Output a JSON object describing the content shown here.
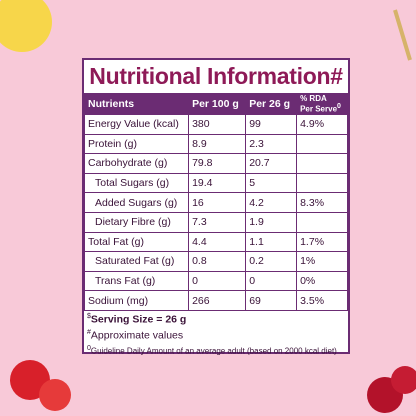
{
  "title": "Nutritional Information#",
  "table": {
    "header": [
      "Nutrients",
      "Per 100 g",
      "Per 26 g",
      {
        "line1": "% RDA",
        "line2": "Per Serve",
        "mark": "0"
      }
    ],
    "rows": [
      {
        "cells": [
          "Energy Value (kcal)",
          "380",
          "99",
          "4.9%"
        ],
        "sub": false
      },
      {
        "cells": [
          "Protein (g)",
          "8.9",
          "2.3",
          null
        ],
        "sub": false
      },
      {
        "cells": [
          "Carbohydrate (g)",
          "79.8",
          "20.7",
          null
        ],
        "sub": false
      },
      {
        "cells": [
          "Total Sugars (g)",
          "19.4",
          "5",
          null
        ],
        "sub": true
      },
      {
        "cells": [
          "Added Sugars (g)",
          "16",
          "4.2",
          "8.3%"
        ],
        "sub": true
      },
      {
        "cells": [
          "Dietary Fibre (g)",
          "7.3",
          "1.9",
          null
        ],
        "sub": true
      },
      {
        "cells": [
          "Total Fat (g)",
          "4.4",
          "1.1",
          "1.7%"
        ],
        "sub": false
      },
      {
        "cells": [
          "Saturated Fat (g)",
          "0.8",
          "0.2",
          "1%"
        ],
        "sub": true
      },
      {
        "cells": [
          "Trans Fat (g)",
          "0",
          "0",
          "0%"
        ],
        "sub": true
      },
      {
        "cells": [
          "Sodium (mg)",
          "266",
          "69",
          "3.5%"
        ],
        "sub": false
      }
    ]
  },
  "footer": [
    {
      "mark": "$",
      "text": "Serving Size = 26 g",
      "bold": true
    },
    {
      "mark": "#",
      "text": "Approximate values",
      "bold": false
    },
    {
      "mark": "0",
      "text": "Guideline Daily Amount of an average adult (based on 2000 kcal diet)",
      "bold": false
    }
  ]
}
